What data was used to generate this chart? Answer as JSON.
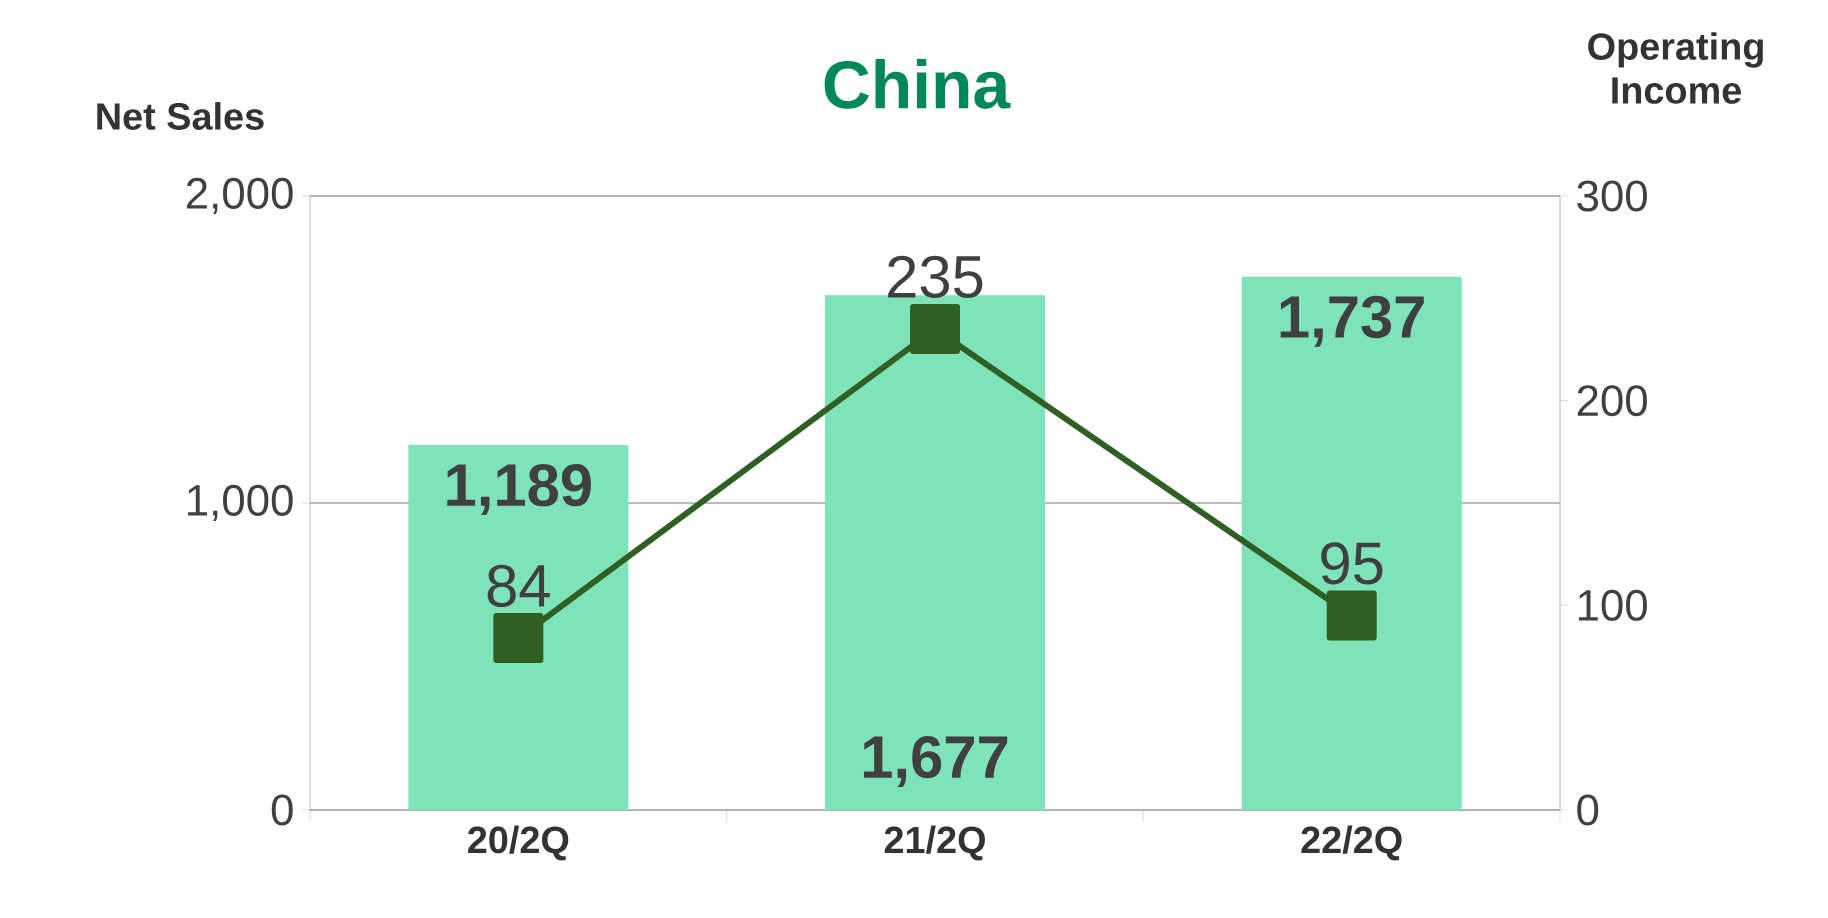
{
  "chart_data": {
    "type": "bar",
    "title": "China",
    "ylabel": "Net Sales",
    "y2label": "Operating Income",
    "categories": [
      "20/2Q",
      "21/2Q",
      "22/2Q"
    ],
    "series": [
      {
        "color": "#7ee3b8",
        "values": [
          1189,
          1677,
          1737
        ],
        "value_labels": [
          "1,189",
          "1,677",
          "1,737"
        ]
      },
      {
        "type": "line",
        "axis": "y2",
        "color": "#2f5f23",
        "values": [
          84,
          235,
          95
        ],
        "value_labels": [
          "84",
          "235",
          "95"
        ]
      }
    ],
    "ylim": [
      0,
      2000
    ],
    "yticks": [
      0,
      {
        "value": 1000,
        "label": "1,000"
      },
      {
        "value": 2000,
        "label": "2,000"
      }
    ],
    "y2lim": [
      0,
      300
    ],
    "y2ticks": [
      0,
      100,
      200,
      300
    ],
    "grid": "y",
    "marker": "square",
    "line_style": "solid"
  }
}
